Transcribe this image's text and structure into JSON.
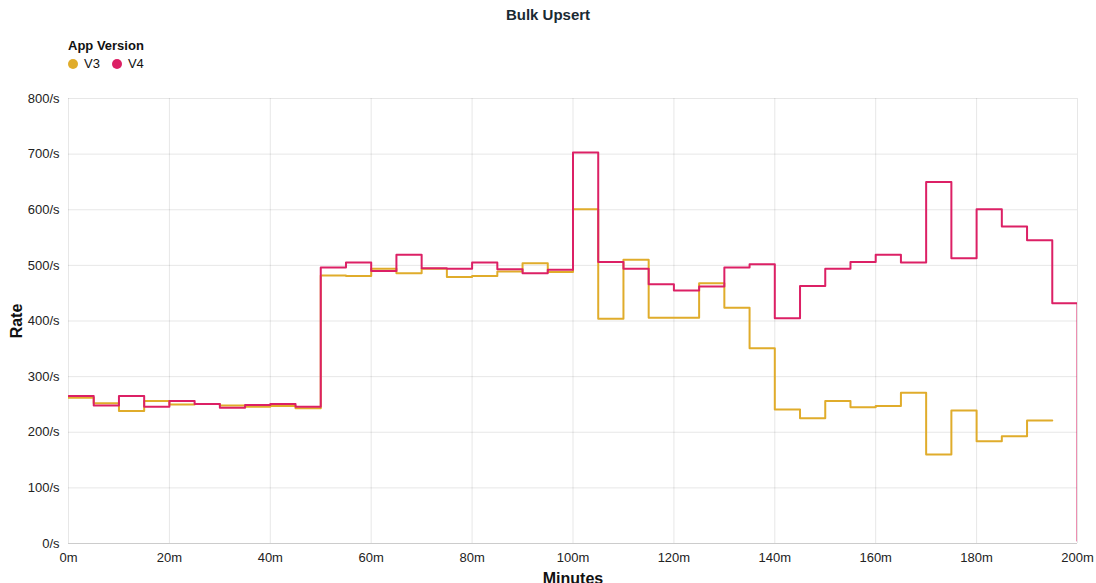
{
  "chart_data": {
    "type": "line",
    "title": "Bulk Upsert",
    "legend_title": "App Version",
    "legend": "top-left",
    "x_label": "Minutes",
    "y_label": "Rate",
    "line_style": "step",
    "grid": true,
    "x": [
      0,
      5,
      10,
      15,
      20,
      25,
      30,
      35,
      40,
      45,
      50,
      55,
      60,
      65,
      70,
      75,
      80,
      85,
      90,
      95,
      100,
      105,
      110,
      115,
      120,
      125,
      130,
      135,
      140,
      145,
      150,
      155,
      160,
      165,
      170,
      175,
      180,
      185,
      190,
      195,
      200
    ],
    "series": [
      {
        "name": "V3",
        "color": "#e0ac2b",
        "values": [
          262,
          252,
          238,
          256,
          250,
          251,
          248,
          246,
          247,
          243,
          482,
          481,
          494,
          486,
          494,
          479,
          481,
          489,
          504,
          488,
          601,
          404,
          510,
          406,
          406,
          468,
          424,
          351,
          241,
          225,
          256,
          245,
          247,
          271,
          160,
          239,
          184,
          193,
          221,
          221,
          null
        ]
      },
      {
        "name": "V4",
        "color": "#dc2065",
        "values": [
          265,
          248,
          265,
          246,
          256,
          251,
          244,
          249,
          251,
          246,
          496,
          505,
          490,
          519,
          495,
          494,
          505,
          493,
          486,
          492,
          703,
          506,
          494,
          466,
          455,
          462,
          496,
          502,
          405,
          463,
          494,
          506,
          519,
          505,
          650,
          513,
          601,
          570,
          545,
          432,
          5
        ]
      }
    ],
    "xlim": [
      0,
      200
    ],
    "xticks": [
      {
        "value": 0,
        "label": "0m"
      },
      {
        "value": 20,
        "label": "20m"
      },
      {
        "value": 40,
        "label": "40m"
      },
      {
        "value": 60,
        "label": "60m"
      },
      {
        "value": 80,
        "label": "80m"
      },
      {
        "value": 100,
        "label": "100m"
      },
      {
        "value": 120,
        "label": "120m"
      },
      {
        "value": 140,
        "label": "140m"
      },
      {
        "value": 160,
        "label": "160m"
      },
      {
        "value": 180,
        "label": "180m"
      },
      {
        "value": 200,
        "label": "200m"
      }
    ],
    "ylim": [
      0,
      800
    ],
    "yticks": [
      {
        "value": 0,
        "label": "0/s"
      },
      {
        "value": 100,
        "label": "100/s"
      },
      {
        "value": 200,
        "label": "200/s"
      },
      {
        "value": 300,
        "label": "300/s"
      },
      {
        "value": 400,
        "label": "400/s"
      },
      {
        "value": 500,
        "label": "500/s"
      },
      {
        "value": 600,
        "label": "600/s"
      },
      {
        "value": 700,
        "label": "700/s"
      },
      {
        "value": 800,
        "label": "800/s"
      }
    ]
  }
}
